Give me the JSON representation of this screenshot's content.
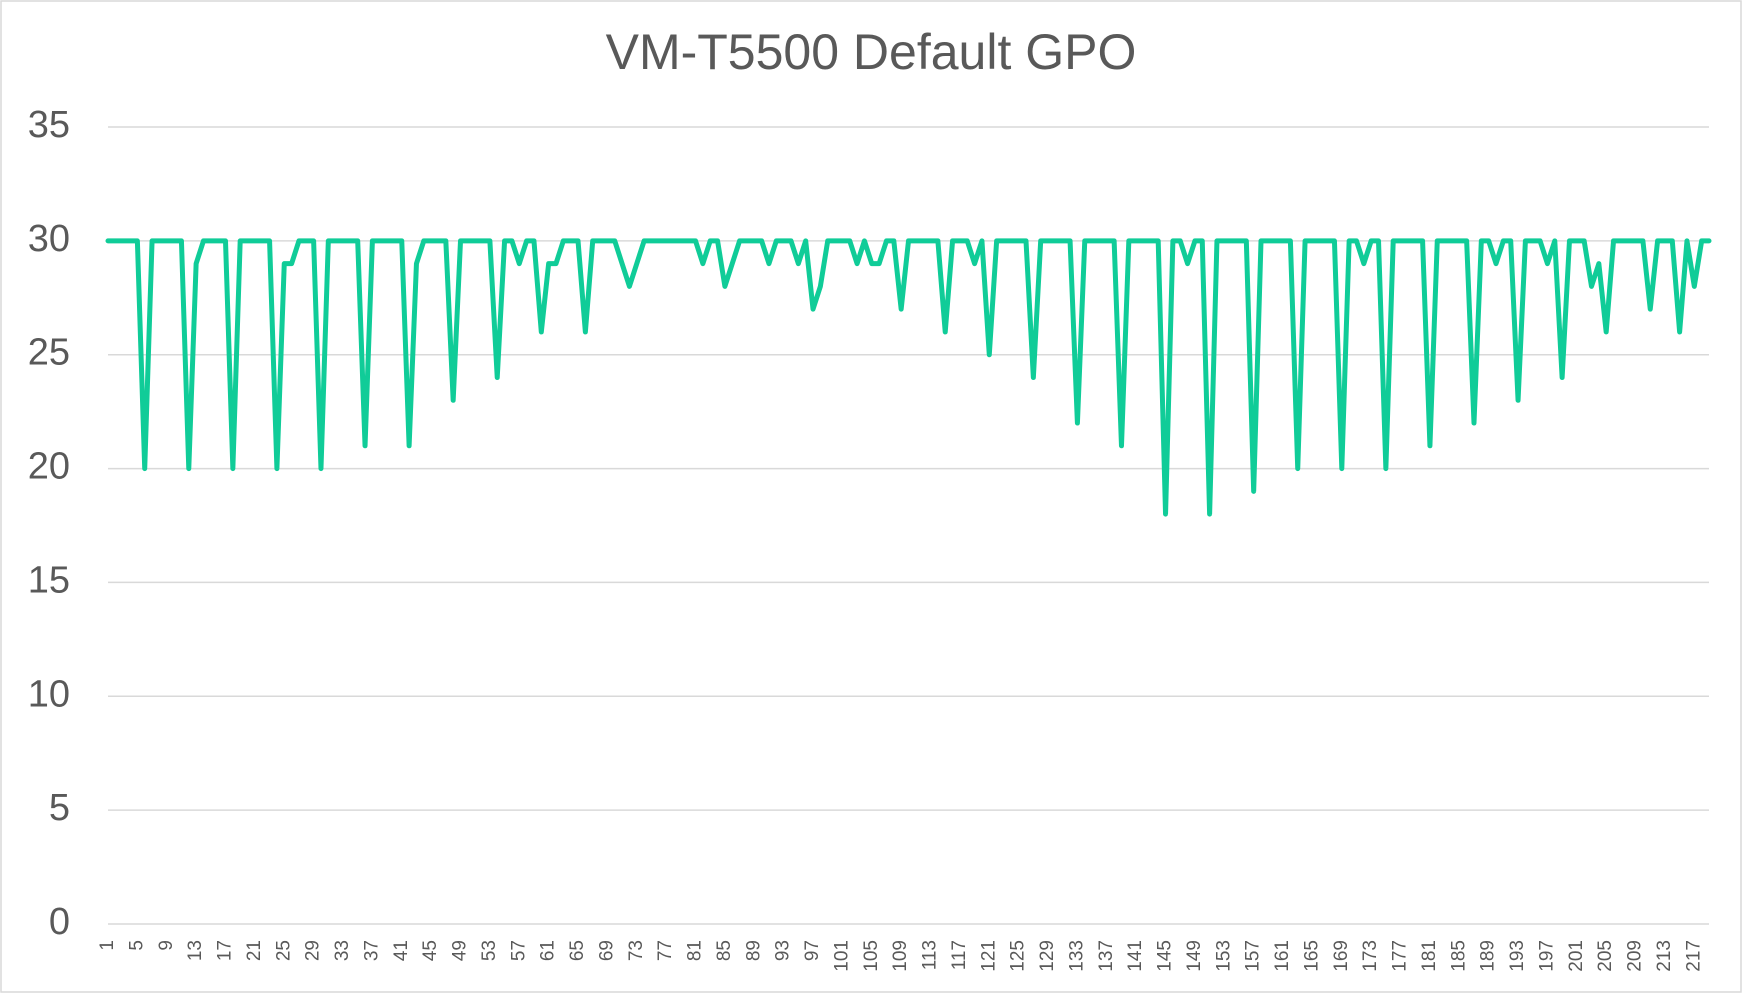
{
  "chart_data": {
    "type": "line",
    "title": "VM-T5500 Default GPO",
    "categories": [
      1,
      null,
      null,
      null,
      5,
      null,
      null,
      null,
      9,
      null,
      null,
      null,
      13,
      null,
      null,
      null,
      17,
      null,
      null,
      null,
      21,
      null,
      null,
      null,
      25,
      null,
      null,
      null,
      29,
      null,
      null,
      null,
      33,
      null,
      null,
      null,
      37,
      null,
      null,
      null,
      41,
      null,
      null,
      null,
      45,
      null,
      null,
      null,
      49,
      null,
      null,
      null,
      53,
      null,
      null,
      null,
      57,
      null,
      null,
      null,
      61,
      null,
      null,
      null,
      65,
      null,
      null,
      null,
      69,
      null,
      null,
      null,
      73,
      null,
      null,
      null,
      77,
      null,
      null,
      null,
      81,
      null,
      null,
      null,
      85,
      null,
      null,
      null,
      89,
      null,
      null,
      null,
      93,
      null,
      null,
      null,
      97,
      null,
      null,
      null,
      101,
      null,
      null,
      null,
      105,
      null,
      null,
      null,
      109,
      null,
      null,
      null,
      113,
      null,
      null,
      null,
      117,
      null,
      null,
      null,
      121,
      null,
      null,
      null,
      125,
      null,
      null,
      null,
      129,
      null,
      null,
      null,
      133,
      null,
      null,
      null,
      137,
      null,
      null,
      null,
      141,
      null,
      null,
      null,
      145,
      null,
      null,
      null,
      149,
      null,
      null,
      null,
      153,
      null,
      null,
      null,
      157,
      null,
      null,
      null,
      161,
      null,
      null,
      null,
      165,
      null,
      null,
      null,
      169,
      null,
      null,
      null,
      173,
      null,
      null,
      null,
      177,
      null,
      null,
      null,
      181,
      null,
      null,
      null,
      185,
      null,
      null,
      null,
      189,
      null,
      null,
      null,
      193,
      null,
      null,
      null,
      197,
      null,
      null,
      null,
      201,
      null,
      null,
      null,
      205,
      null,
      null,
      null,
      209,
      null,
      null,
      null,
      213,
      null,
      null,
      null,
      217,
      null,
      null
    ],
    "values": [
      30,
      30,
      30,
      30,
      30,
      20,
      30,
      30,
      30,
      30,
      30,
      20,
      29,
      30,
      30,
      30,
      30,
      20,
      30,
      30,
      30,
      30,
      30,
      20,
      29,
      29,
      30,
      30,
      30,
      20,
      30,
      30,
      30,
      30,
      30,
      21,
      30,
      30,
      30,
      30,
      30,
      21,
      29,
      30,
      30,
      30,
      30,
      23,
      30,
      30,
      30,
      30,
      30,
      24,
      30,
      30,
      29,
      30,
      30,
      26,
      29,
      29,
      30,
      30,
      30,
      26,
      30,
      30,
      30,
      30,
      29,
      28,
      29,
      30,
      30,
      30,
      30,
      30,
      30,
      30,
      30,
      29,
      30,
      30,
      28,
      29,
      30,
      30,
      30,
      30,
      29,
      30,
      30,
      30,
      29,
      30,
      27,
      28,
      30,
      30,
      30,
      30,
      29,
      30,
      29,
      29,
      30,
      30,
      27,
      30,
      30,
      30,
      30,
      30,
      26,
      30,
      30,
      30,
      29,
      30,
      25,
      30,
      30,
      30,
      30,
      30,
      24,
      30,
      30,
      30,
      30,
      30,
      22,
      30,
      30,
      30,
      30,
      30,
      21,
      30,
      30,
      30,
      30,
      30,
      18,
      30,
      30,
      29,
      30,
      30,
      18,
      30,
      30,
      30,
      30,
      30,
      19,
      30,
      30,
      30,
      30,
      30,
      20,
      30,
      30,
      30,
      30,
      30,
      20,
      30,
      30,
      29,
      30,
      30,
      20,
      30,
      30,
      30,
      30,
      30,
      21,
      30,
      30,
      30,
      30,
      30,
      22,
      30,
      30,
      29,
      30,
      30,
      23,
      30,
      30,
      30,
      29,
      30,
      24,
      30,
      30,
      30,
      28,
      29,
      26,
      30,
      30,
      30,
      30,
      30,
      27,
      30,
      30,
      30,
      26,
      30,
      28,
      30,
      30
    ],
    "color": "#10cc98",
    "ylim": [
      0,
      35
    ],
    "yticks": [
      0,
      5,
      10,
      15,
      20,
      25,
      30,
      35
    ],
    "grid": true
  }
}
